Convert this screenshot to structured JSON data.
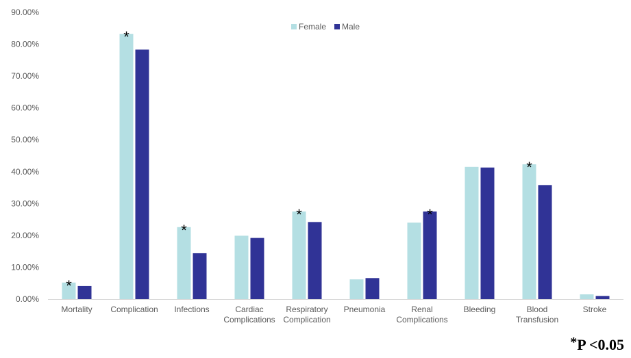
{
  "chart_data": {
    "type": "bar",
    "categories": [
      "Mortality",
      "Complication",
      "Infections",
      "Cardiac\nComplications",
      "Respiratory\nComplication",
      "Pneumonia",
      "Renal\nComplications",
      "Bleeding",
      "Blood\nTransfusion",
      "Stroke"
    ],
    "series": [
      {
        "name": "Female",
        "color": "#b4dfe3",
        "values": [
          5.2,
          83.2,
          22.6,
          19.9,
          27.5,
          6.2,
          24.0,
          41.5,
          42.3,
          1.5
        ]
      },
      {
        "name": "Male",
        "color": "#303396",
        "values": [
          4.1,
          78.3,
          14.4,
          19.2,
          24.2,
          6.6,
          27.5,
          41.3,
          35.8,
          1.0
        ]
      }
    ],
    "ylim": [
      0,
      90
    ],
    "yticks": [
      "0.00%",
      "10.00%",
      "20.00%",
      "30.00%",
      "40.00%",
      "50.00%",
      "60.00%",
      "70.00%",
      "80.00%",
      "90.00%"
    ],
    "significance": [
      {
        "category_index": 0,
        "series_index": 0,
        "mark": "*"
      },
      {
        "category_index": 1,
        "series_index": 0,
        "mark": "*"
      },
      {
        "category_index": 2,
        "series_index": 0,
        "mark": "*"
      },
      {
        "category_index": 4,
        "series_index": 0,
        "mark": "*"
      },
      {
        "category_index": 6,
        "series_index": 1,
        "mark": "*"
      },
      {
        "category_index": 8,
        "series_index": 0,
        "mark": "*"
      }
    ],
    "legend_position": "top-center",
    "grid": false
  },
  "footnote": {
    "asterisk": "*",
    "text": "P <0.05"
  }
}
